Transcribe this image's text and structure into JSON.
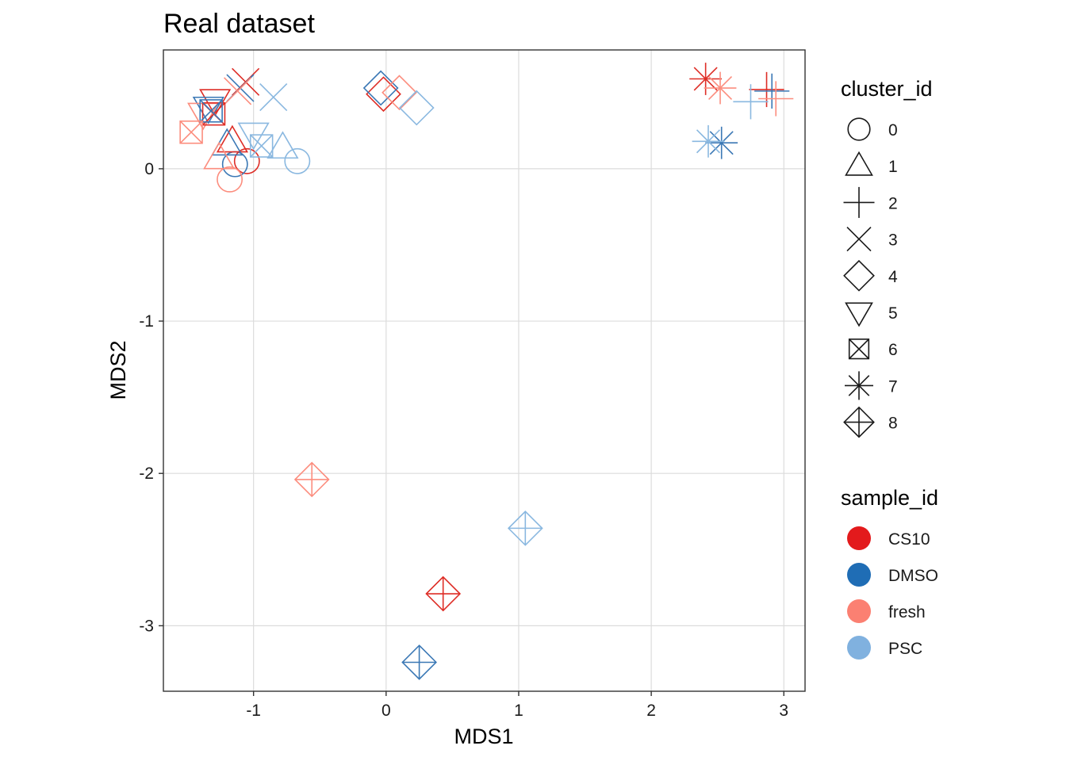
{
  "chart_data": {
    "type": "scatter",
    "title": "Real dataset",
    "xlabel": "MDS1",
    "ylabel": "MDS2",
    "xlim": [
      -1.68,
      3.16
    ],
    "ylim": [
      -3.43,
      0.78
    ],
    "x_ticks": [
      -1,
      0,
      1,
      2,
      3
    ],
    "y_ticks": [
      0,
      -1,
      -2,
      -3
    ],
    "x_tick_labels": [
      "-1",
      "0",
      "1",
      "2",
      "3"
    ],
    "y_tick_labels": [
      "0",
      "-1",
      "-2",
      "-3"
    ],
    "grid": true,
    "legend_position": "right",
    "colors": {
      "CS10": "#de2d26",
      "DMSO": "#3b78b5",
      "fresh": "#fc8d7e",
      "PSC": "#8ab8e0"
    },
    "legend_colors": {
      "CS10": "#e31a1c",
      "DMSO": "#1f6db5",
      "fresh": "#fb8072",
      "PSC": "#80b1df"
    },
    "legends": {
      "cluster": {
        "title": "cluster_id",
        "entries": [
          {
            "label": "0",
            "shape": "circle"
          },
          {
            "label": "1",
            "shape": "triangle"
          },
          {
            "label": "2",
            "shape": "plus"
          },
          {
            "label": "3",
            "shape": "cross"
          },
          {
            "label": "4",
            "shape": "diamond"
          },
          {
            "label": "5",
            "shape": "triangle-down"
          },
          {
            "label": "6",
            "shape": "square-cross"
          },
          {
            "label": "7",
            "shape": "asterisk"
          },
          {
            "label": "8",
            "shape": "diamond-plus"
          }
        ]
      },
      "sample": {
        "title": "sample_id",
        "entries": [
          "CS10",
          "DMSO",
          "fresh",
          "PSC"
        ]
      }
    },
    "points": [
      {
        "cluster": "0",
        "sample": "CS10",
        "x": -1.05,
        "y": 0.05
      },
      {
        "cluster": "0",
        "sample": "DMSO",
        "x": -1.14,
        "y": 0.03
      },
      {
        "cluster": "0",
        "sample": "fresh",
        "x": -1.18,
        "y": -0.07
      },
      {
        "cluster": "0",
        "sample": "PSC",
        "x": -0.67,
        "y": 0.05
      },
      {
        "cluster": "1",
        "sample": "CS10",
        "x": -1.16,
        "y": 0.18
      },
      {
        "cluster": "1",
        "sample": "DMSO",
        "x": -1.2,
        "y": 0.16
      },
      {
        "cluster": "1",
        "sample": "fresh",
        "x": -1.26,
        "y": 0.07
      },
      {
        "cluster": "1",
        "sample": "PSC",
        "x": -0.78,
        "y": 0.14
      },
      {
        "cluster": "2",
        "sample": "CS10",
        "x": 2.87,
        "y": 0.52
      },
      {
        "cluster": "2",
        "sample": "DMSO",
        "x": 2.91,
        "y": 0.51
      },
      {
        "cluster": "2",
        "sample": "fresh",
        "x": 2.94,
        "y": 0.46
      },
      {
        "cluster": "2",
        "sample": "PSC",
        "x": 2.75,
        "y": 0.44
      },
      {
        "cluster": "3",
        "sample": "CS10",
        "x": -1.06,
        "y": 0.57
      },
      {
        "cluster": "3",
        "sample": "DMSO",
        "x": -1.1,
        "y": 0.53
      },
      {
        "cluster": "3",
        "sample": "fresh",
        "x": -1.12,
        "y": 0.51
      },
      {
        "cluster": "3",
        "sample": "PSC",
        "x": -0.85,
        "y": 0.47
      },
      {
        "cluster": "4",
        "sample": "CS10",
        "x": -0.02,
        "y": 0.49
      },
      {
        "cluster": "4",
        "sample": "DMSO",
        "x": -0.04,
        "y": 0.53
      },
      {
        "cluster": "4",
        "sample": "fresh",
        "x": 0.1,
        "y": 0.5
      },
      {
        "cluster": "4",
        "sample": "PSC",
        "x": 0.23,
        "y": 0.4
      },
      {
        "cluster": "5",
        "sample": "CS10",
        "x": -1.29,
        "y": 0.45
      },
      {
        "cluster": "5",
        "sample": "DMSO",
        "x": -1.34,
        "y": 0.4
      },
      {
        "cluster": "5",
        "sample": "fresh",
        "x": -1.38,
        "y": 0.36
      },
      {
        "cluster": "5",
        "sample": "PSC",
        "x": -1.0,
        "y": 0.23
      },
      {
        "cluster": "6",
        "sample": "CS10",
        "x": -1.3,
        "y": 0.36
      },
      {
        "cluster": "6",
        "sample": "DMSO",
        "x": -1.32,
        "y": 0.38
      },
      {
        "cluster": "6",
        "sample": "fresh",
        "x": -1.47,
        "y": 0.24
      },
      {
        "cluster": "6",
        "sample": "PSC",
        "x": -0.94,
        "y": 0.15
      },
      {
        "cluster": "7",
        "sample": "CS10",
        "x": 2.41,
        "y": 0.59
      },
      {
        "cluster": "7",
        "sample": "DMSO",
        "x": 2.53,
        "y": 0.17
      },
      {
        "cluster": "7",
        "sample": "fresh",
        "x": 2.52,
        "y": 0.53
      },
      {
        "cluster": "7",
        "sample": "PSC",
        "x": 2.43,
        "y": 0.18
      },
      {
        "cluster": "8",
        "sample": "CS10",
        "x": 0.43,
        "y": -2.79
      },
      {
        "cluster": "8",
        "sample": "DMSO",
        "x": 0.25,
        "y": -3.24
      },
      {
        "cluster": "8",
        "sample": "fresh",
        "x": -0.56,
        "y": -2.04
      },
      {
        "cluster": "8",
        "sample": "PSC",
        "x": 1.05,
        "y": -2.36
      }
    ]
  }
}
